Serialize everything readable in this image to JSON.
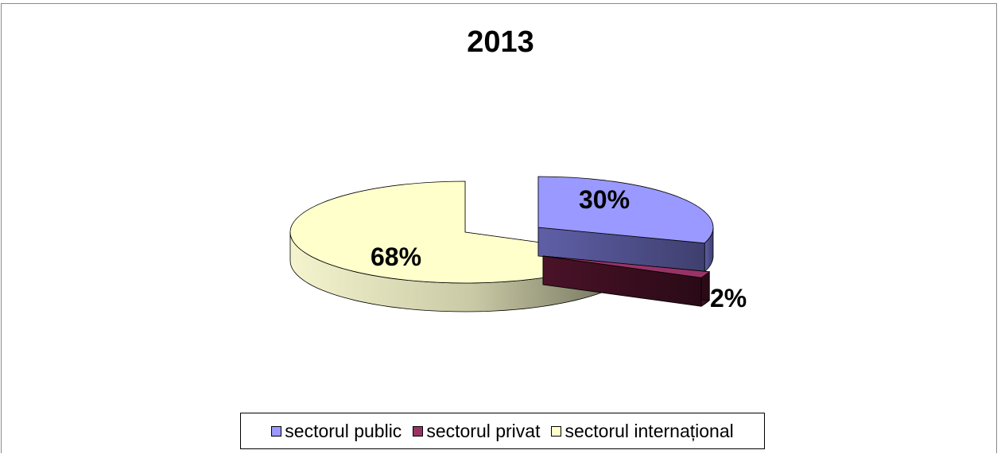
{
  "chart_data": {
    "type": "pie",
    "title": "2013",
    "slices": [
      {
        "name": "sectorul public",
        "value": 30,
        "label": "30%",
        "color": "#9999ff"
      },
      {
        "name": "sectorul privat",
        "value": 2,
        "label": "2%",
        "color": "#993366"
      },
      {
        "name": "sectorul internațional",
        "value": 68,
        "label": "68%",
        "color": "#ffffcc"
      }
    ],
    "style": "3d-exploded",
    "legend": "bottom"
  }
}
